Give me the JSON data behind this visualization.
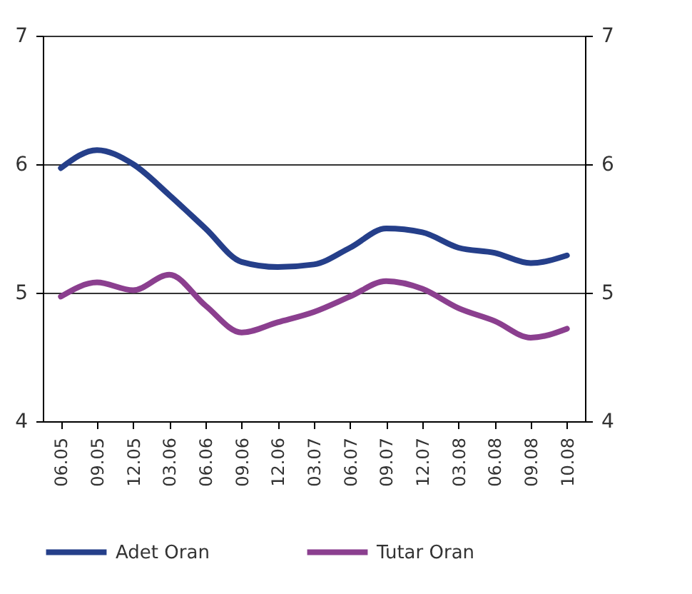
{
  "chart_data": {
    "type": "line",
    "categories": [
      "06.05",
      "09.05",
      "12.05",
      "03.06",
      "06.06",
      "09.06",
      "12.06",
      "03.07",
      "06.07",
      "09.07",
      "12.07",
      "03.08",
      "06.08",
      "09.08",
      "10.08"
    ],
    "series": [
      {
        "name": "Adet Oran",
        "color": "#253f8a",
        "values": [
          5.97,
          6.11,
          6.0,
          5.76,
          5.5,
          5.24,
          5.2,
          5.22,
          5.35,
          5.5,
          5.47,
          5.35,
          5.31,
          5.23,
          5.29
        ]
      },
      {
        "name": "Tutar Oran",
        "color": "#8b3f8f",
        "values": [
          4.97,
          5.08,
          5.02,
          5.14,
          4.9,
          4.69,
          4.77,
          4.85,
          4.97,
          5.09,
          5.03,
          4.88,
          4.78,
          4.65,
          4.72
        ]
      }
    ],
    "ylim": [
      4,
      7
    ],
    "yticks": [
      4,
      5,
      6,
      7
    ],
    "y2lim": [
      4,
      7
    ],
    "y2ticks": [
      4,
      5,
      6,
      7
    ],
    "grid": "y",
    "legend": "bottom",
    "marker": "none",
    "line_style": "solid"
  }
}
